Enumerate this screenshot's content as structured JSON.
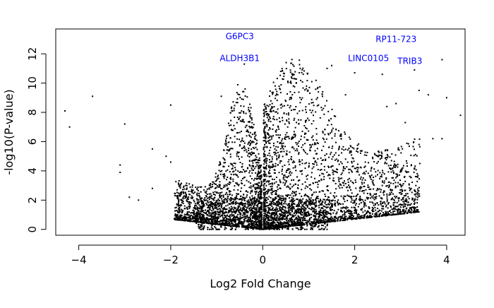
{
  "chart_data": {
    "type": "scatter",
    "title": "",
    "xlabel": "Log2 Fold Change",
    "ylabel": "-log10(P-value)",
    "xlim": [
      -4.5,
      4.4
    ],
    "ylim": [
      -0.4,
      13.7
    ],
    "xticks": [
      -4,
      -2,
      0,
      2,
      4
    ],
    "yticks": [
      0,
      2,
      4,
      6,
      8,
      10,
      12
    ],
    "grid": false,
    "point_color": "#000000",
    "label_color": "#0000ff",
    "labeled_genes": [
      {
        "text": "G6PC3",
        "x": -0.5,
        "y": 13.2
      },
      {
        "text": "ALDH3B1",
        "x": -0.5,
        "y": 11.7
      },
      {
        "text": "RP11-723",
        "x": 2.9,
        "y": 13.0
      },
      {
        "text": "LINC0105",
        "x": 2.3,
        "y": 11.7
      },
      {
        "text": "TRIB3",
        "x": 3.2,
        "y": 11.5
      }
    ],
    "highlight_points": [
      {
        "x": -4.3,
        "y": 8.1
      },
      {
        "x": -4.2,
        "y": 7.0
      },
      {
        "x": -3.7,
        "y": 9.1
      },
      {
        "x": -3.0,
        "y": 7.2
      },
      {
        "x": -3.1,
        "y": 4.4
      },
      {
        "x": -3.1,
        "y": 3.9
      },
      {
        "x": -2.9,
        "y": 2.2
      },
      {
        "x": -2.7,
        "y": 2.0
      },
      {
        "x": -2.4,
        "y": 2.8
      },
      {
        "x": -2.4,
        "y": 5.5
      },
      {
        "x": -2.0,
        "y": 8.5
      },
      {
        "x": -2.1,
        "y": 5.0
      },
      {
        "x": -2.0,
        "y": 4.6
      },
      {
        "x": -0.9,
        "y": 9.1
      },
      {
        "x": -0.4,
        "y": 11.3
      },
      {
        "x": 1.4,
        "y": 11.0
      },
      {
        "x": 1.5,
        "y": 11.2
      },
      {
        "x": 2.0,
        "y": 10.7
      },
      {
        "x": 2.6,
        "y": 10.6
      },
      {
        "x": 3.3,
        "y": 10.9
      },
      {
        "x": 3.4,
        "y": 9.5
      },
      {
        "x": 3.6,
        "y": 9.2
      },
      {
        "x": 3.9,
        "y": 11.6
      },
      {
        "x": 4.0,
        "y": 9.0
      },
      {
        "x": 4.3,
        "y": 7.8
      },
      {
        "x": 3.7,
        "y": 6.2
      },
      {
        "x": 3.4,
        "y": 5.8
      },
      {
        "x": 3.9,
        "y": 6.2
      },
      {
        "x": 2.9,
        "y": 8.6
      },
      {
        "x": 2.7,
        "y": 8.4
      },
      {
        "x": 3.0,
        "y": 4.0
      },
      {
        "x": 2.6,
        "y": 3.0
      },
      {
        "x": 3.1,
        "y": 7.3
      },
      {
        "x": 1.8,
        "y": 9.2
      },
      {
        "x": 1.2,
        "y": 9.7
      },
      {
        "x": 0.6,
        "y": 9.4
      }
    ],
    "bulk_clouds": [
      {
        "side": "negative",
        "xrange": [
          -1.9,
          -0.02
        ],
        "ymax_at_center": 8.5,
        "peak_x": -0.45,
        "count": 1800
      },
      {
        "side": "positive",
        "xrange": [
          0.02,
          3.4
        ],
        "ymax_at_center": 9.5,
        "peak_x": 0.6,
        "count": 2600
      }
    ]
  }
}
